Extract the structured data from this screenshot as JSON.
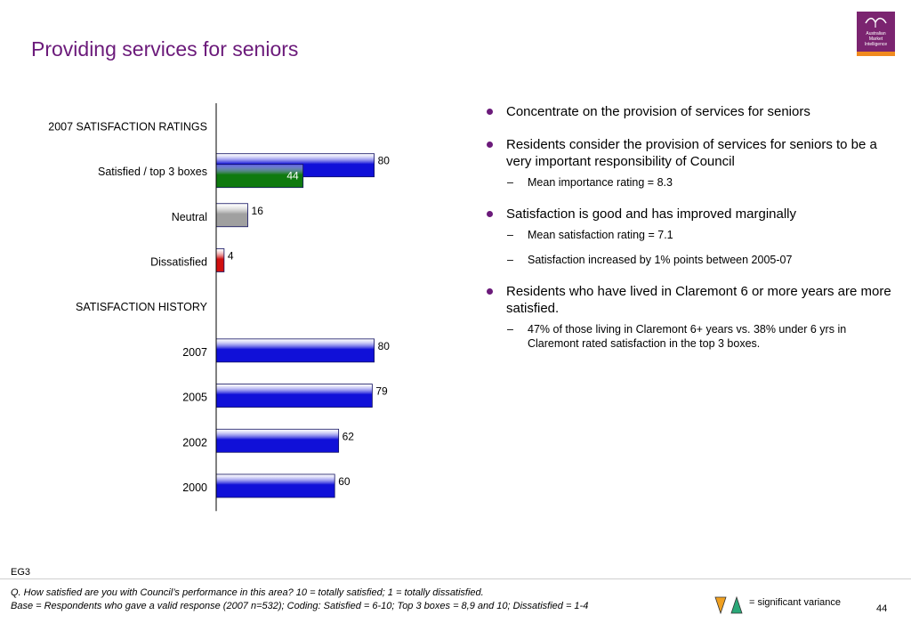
{
  "slide": {
    "title": "Providing services for seniors",
    "code": "EG3",
    "page_number": "44"
  },
  "logo": {
    "lines": [
      "Australian",
      "Market",
      "Intelligence"
    ],
    "color": "#7b2470",
    "accent": "#f08a1e"
  },
  "chart_data": {
    "type": "bar",
    "orientation": "horizontal",
    "sections": [
      {
        "heading": "2007 SATISFACTION RATINGS",
        "rows": [
          {
            "label": "Satisfied / top 3 boxes",
            "bars": [
              {
                "value": 80,
                "color": "#1010d8"
              },
              {
                "value": 44,
                "color": "#0f7a0f"
              }
            ]
          },
          {
            "label": "Neutral",
            "bars": [
              {
                "value": 16,
                "color": "#a0a0a0"
              }
            ]
          },
          {
            "label": "Dissatisfied",
            "bars": [
              {
                "value": 4,
                "color": "#d01010"
              }
            ]
          }
        ]
      },
      {
        "heading": "SATISFACTION HISTORY",
        "rows": [
          {
            "label": "2007",
            "bars": [
              {
                "value": 80,
                "color": "#1010d8"
              }
            ]
          },
          {
            "label": "2005",
            "bars": [
              {
                "value": 79,
                "color": "#1010d8"
              }
            ]
          },
          {
            "label": "2002",
            "bars": [
              {
                "value": 62,
                "color": "#1010d8"
              }
            ]
          },
          {
            "label": "2000",
            "bars": [
              {
                "value": 60,
                "color": "#1010d8"
              }
            ]
          }
        ]
      }
    ],
    "xlim": [
      0,
      100
    ],
    "grid": false,
    "legend": "none"
  },
  "bullets": [
    {
      "text": "Concentrate on the provision of services for seniors",
      "subs": []
    },
    {
      "text": "Residents consider the provision of services for seniors to be a very important responsibility of Council",
      "subs": [
        "Mean importance rating = 8.3"
      ]
    },
    {
      "text": "Satisfaction is good and has improved marginally",
      "subs": [
        "Mean satisfaction rating = 7.1",
        "Satisfaction increased by 1% points between 2005-07"
      ]
    },
    {
      "text": "Residents who have lived in Claremont 6 or more years are more satisfied.",
      "subs": [
        "47% of those living in Claremont 6+ years vs. 38% under 6 yrs in Claremont rated satisfaction in the top 3 boxes."
      ]
    }
  ],
  "footer": {
    "question": "Q. How satisfied are you with Council’s performance in this area? 10 = totally satisfied; 1 = totally dissatisfied.",
    "base": "Base = Respondents who gave a valid response (2007 n=532); Coding: Satisfied = 6-10; Top 3 boxes = 8,9 and 10; Dissatisfied = 1-4",
    "legend_text": "= significant variance",
    "legend_colors": {
      "down": "#f0a020",
      "up": "#2aa878"
    }
  }
}
